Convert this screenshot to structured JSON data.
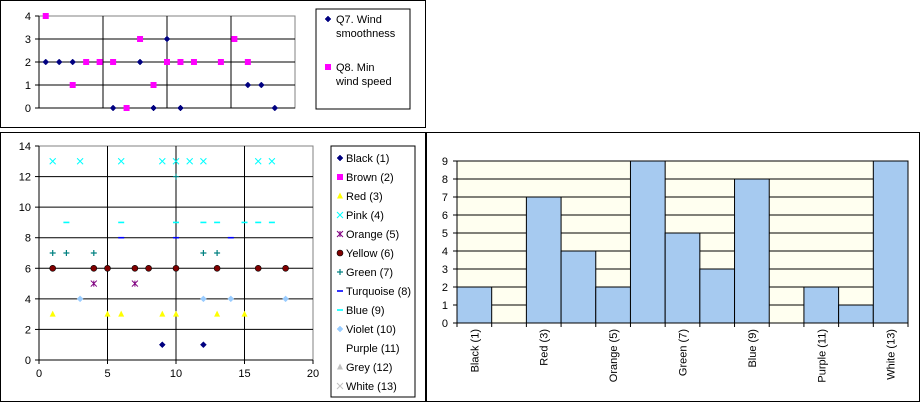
{
  "chart_data": [
    {
      "type": "scatter",
      "x_count": 19,
      "ylim": [
        0,
        4
      ],
      "yticks": [
        "0",
        "1",
        "2",
        "3",
        "4"
      ],
      "grid": true,
      "plot_background": "#ffffff",
      "legend_placement": "right",
      "series": [
        {
          "name": "Q7. Wind smoothness",
          "marker": "diamond",
          "color": "#000080",
          "values": [
            2,
            2,
            2,
            null,
            null,
            0,
            null,
            2,
            0,
            3,
            0,
            null,
            null,
            null,
            null,
            1,
            1,
            0,
            null
          ]
        },
        {
          "name": "Q8. Min wind speed",
          "marker": "square",
          "color": "#ff00ff",
          "values": [
            4,
            null,
            1,
            2,
            2,
            2,
            0,
            3,
            1,
            2,
            2,
            2,
            null,
            2,
            3,
            2,
            null,
            null,
            null
          ]
        }
      ]
    },
    {
      "type": "scatter",
      "xlim": [
        0,
        20
      ],
      "ylim": [
        0,
        14
      ],
      "xticks": [
        "0",
        "5",
        "10",
        "15",
        "20"
      ],
      "yticks": [
        "0",
        "2",
        "4",
        "6",
        "8",
        "10",
        "12",
        "14"
      ],
      "grid": true,
      "plot_background": "#ffffff",
      "legend_placement": "right",
      "series": [
        {
          "name": "Black (1)",
          "marker": "diamond",
          "color": "#000080",
          "points": [
            [
              9,
              1
            ],
            [
              12,
              1
            ]
          ]
        },
        {
          "name": "Brown (2)",
          "marker": "square",
          "color": "#ff00ff",
          "points": []
        },
        {
          "name": "Red (3)",
          "marker": "triangle",
          "color": "#ffff00",
          "points": [
            [
              1,
              3
            ],
            [
              5,
              3
            ],
            [
              6,
              3
            ],
            [
              9,
              3
            ],
            [
              10,
              3
            ],
            [
              13,
              3
            ],
            [
              15,
              3
            ]
          ]
        },
        {
          "name": "Pink (4)",
          "marker": "x",
          "color": "#00ffff",
          "points": [
            [
              1,
              13
            ],
            [
              3,
              13
            ],
            [
              6,
              13
            ],
            [
              9,
              13
            ],
            [
              10,
              13
            ],
            [
              11,
              13
            ],
            [
              12,
              13
            ],
            [
              16,
              13
            ],
            [
              17,
              13
            ]
          ]
        },
        {
          "name": "Orange (5)",
          "marker": "star",
          "color": "#800080",
          "points": [
            [
              4,
              5
            ],
            [
              7,
              5
            ]
          ]
        },
        {
          "name": "Yellow (6)",
          "marker": "circle",
          "color": "#800000",
          "points": [
            [
              1,
              6
            ],
            [
              4,
              6
            ],
            [
              5,
              6
            ],
            [
              7,
              6
            ],
            [
              8,
              6
            ],
            [
              10,
              6
            ],
            [
              13,
              6
            ],
            [
              16,
              6
            ],
            [
              18,
              6
            ]
          ]
        },
        {
          "name": "Green (7)",
          "marker": "plus",
          "color": "#008080",
          "points": [
            [
              1,
              7
            ],
            [
              2,
              7
            ],
            [
              4,
              7
            ],
            [
              10,
              12
            ],
            [
              12,
              7
            ],
            [
              13,
              7
            ]
          ]
        },
        {
          "name": "Turquoise (8)",
          "marker": "dash",
          "color": "#0000ff",
          "points": [
            [
              6,
              8
            ],
            [
              10,
              8
            ],
            [
              14,
              8
            ]
          ]
        },
        {
          "name": "Blue (9)",
          "marker": "dash",
          "color": "#00ffff",
          "points": [
            [
              2,
              9
            ],
            [
              6,
              9
            ],
            [
              10,
              9
            ],
            [
              12,
              9
            ],
            [
              13,
              9
            ],
            [
              15,
              9
            ],
            [
              16,
              9
            ],
            [
              17,
              9
            ]
          ]
        },
        {
          "name": "Violet (10)",
          "marker": "diamond",
          "color": "#99ccff",
          "points": [
            [
              3,
              4
            ],
            [
              12,
              4
            ],
            [
              14,
              4
            ],
            [
              18,
              4
            ]
          ]
        },
        {
          "name": "Purple (11)",
          "marker": "none",
          "color": "#800080",
          "points": []
        },
        {
          "name": "Grey (12)",
          "marker": "triangle",
          "color": "#c0c0c0",
          "points": []
        },
        {
          "name": "White (13)",
          "marker": "x",
          "color": "#c0c0c0",
          "points": []
        }
      ]
    },
    {
      "type": "bar",
      "categories": [
        "Black (1)",
        "Brown (2)",
        "Red (3)",
        "Pink (4)",
        "Orange (5)",
        "Yellow (6)",
        "Green (7)",
        "Turquoise (8)",
        "Blue (9)",
        "Violet (10)",
        "Purple (11)",
        "Grey (12)",
        "White (13)"
      ],
      "category_labels_shown": [
        "Black (1)",
        "",
        "Red (3)",
        "",
        "Orange (5)",
        "",
        "Green (7)",
        "",
        "Blue (9)",
        "",
        "Purple (11)",
        "",
        "White (13)"
      ],
      "values": [
        2,
        0,
        7,
        4,
        2,
        9,
        5,
        3,
        8,
        0,
        2,
        1,
        9
      ],
      "ylim": [
        0,
        9
      ],
      "yticks": [
        "0",
        "1",
        "2",
        "3",
        "4",
        "5",
        "6",
        "7",
        "8",
        "9"
      ],
      "grid": true,
      "bar_color": "#a6caf0",
      "plot_background": "#fffff0",
      "legend_placement": "none"
    }
  ]
}
